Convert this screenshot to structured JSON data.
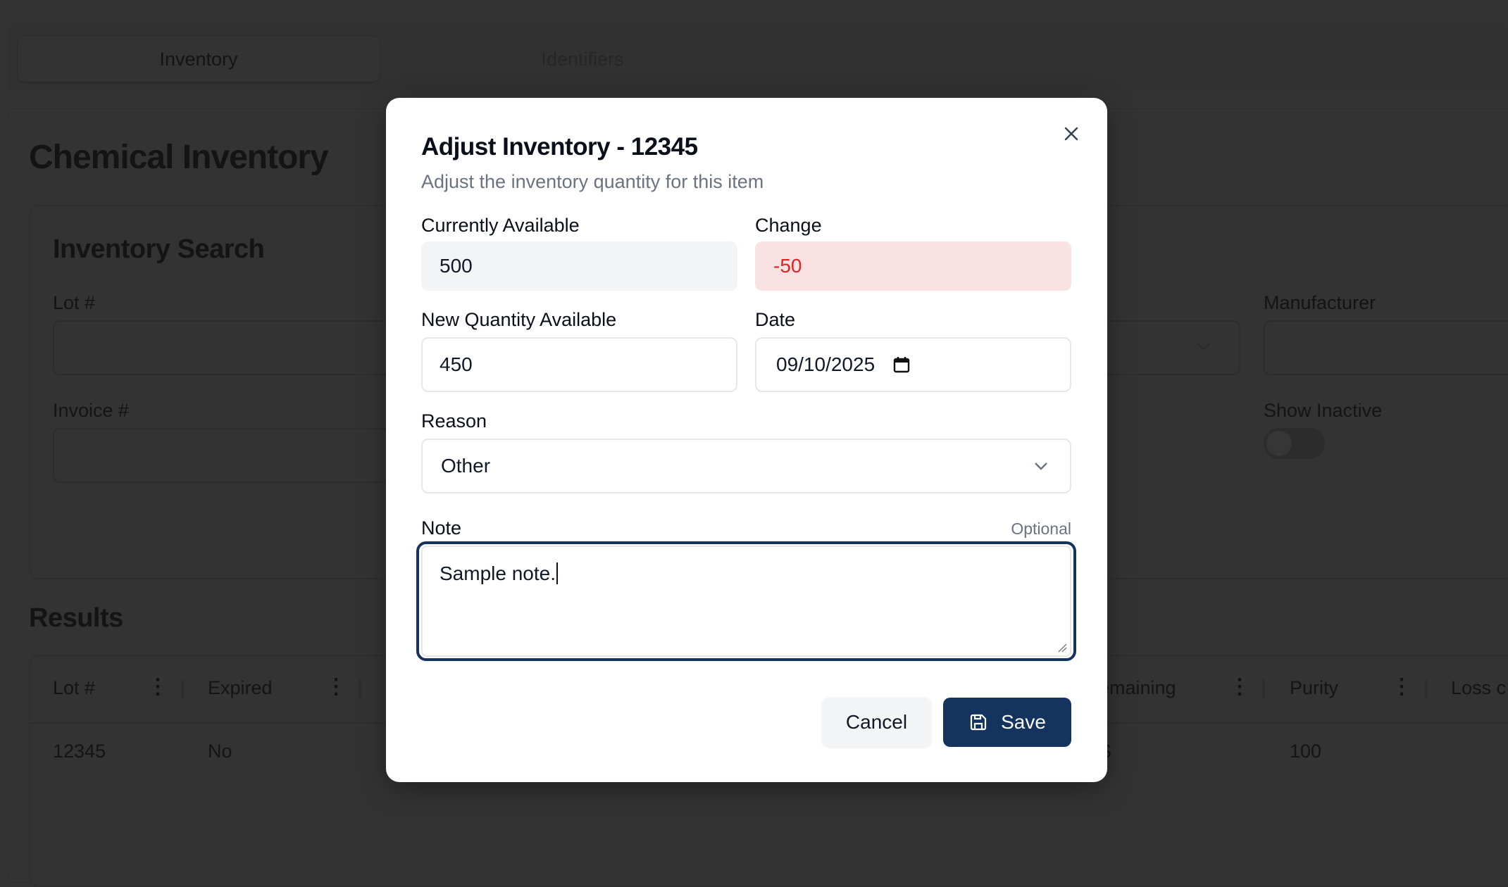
{
  "tabs": [
    {
      "label": "Inventory",
      "active": true
    },
    {
      "label": "Identifiers",
      "active": false
    }
  ],
  "page": {
    "title": "Chemical Inventory"
  },
  "search": {
    "title": "Inventory Search",
    "lot_label": "Lot #",
    "invoice_label": "Invoice #",
    "manufacturer_label": "Manufacturer",
    "show_inactive_label": "Show Inactive",
    "show_inactive": false
  },
  "results": {
    "title": "Results",
    "columns": [
      "Lot #",
      "Expired",
      "emaining",
      "Purity",
      "Loss c"
    ],
    "rows": [
      {
        "lot": "12345",
        "expired": "No",
        "remaining": "S",
        "purity": "100"
      }
    ]
  },
  "modal": {
    "title": "Adjust Inventory - 12345",
    "subtitle": "Adjust the inventory quantity for this item",
    "currently_available_label": "Currently Available",
    "currently_available": "500",
    "change_label": "Change",
    "change": "-50",
    "new_quantity_label": "New Quantity Available",
    "new_quantity": "450",
    "date_label": "Date",
    "date": "09/10/2025",
    "reason_label": "Reason",
    "reason": "Other",
    "note_label": "Note",
    "note_optional": "Optional",
    "note": "Sample note.",
    "cancel_label": "Cancel",
    "save_label": "Save"
  },
  "colors": {
    "primary": "#14335f",
    "error": "#dc2626",
    "error_bg": "#fbe2e2",
    "backdrop": "#333333"
  }
}
